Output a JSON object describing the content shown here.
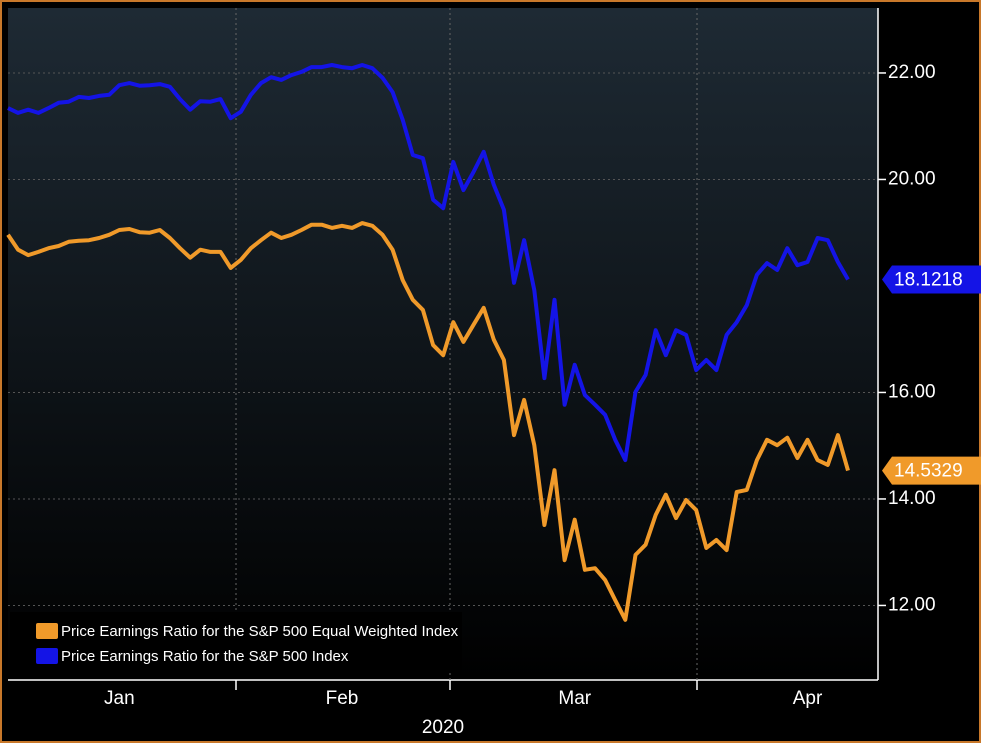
{
  "chart_data": {
    "type": "line",
    "xlabel": "2020",
    "categories": [
      null,
      null,
      null,
      null,
      null,
      null,
      null,
      null,
      null,
      null,
      null,
      "Jan",
      null,
      null,
      null,
      null,
      null,
      null,
      null,
      null,
      null,
      null,
      null,
      null,
      null,
      null,
      null,
      null,
      null,
      null,
      null,
      null,
      null,
      "Feb",
      null,
      null,
      null,
      null,
      null,
      null,
      null,
      null,
      null,
      null,
      null,
      null,
      null,
      null,
      null,
      null,
      null,
      null,
      null,
      null,
      null,
      null,
      "Mar",
      null,
      null,
      null,
      null,
      null,
      null,
      null,
      null,
      null,
      null,
      null,
      null,
      null,
      null,
      null,
      null,
      null,
      null,
      null,
      null,
      null,
      null,
      "Apr",
      null,
      null,
      null,
      null
    ],
    "series": [
      {
        "name": "Price Earnings Ratio for the S&P 500 Equal Weighted Index",
        "color": "#f09a2a",
        "values": [
          18.96,
          18.68,
          18.58,
          18.64,
          18.71,
          18.75,
          18.83,
          18.85,
          18.86,
          18.9,
          18.96,
          19.05,
          19.07,
          19.01,
          19.0,
          19.05,
          18.9,
          18.71,
          18.53,
          18.68,
          18.64,
          18.64,
          18.34,
          18.49,
          18.71,
          18.86,
          19.0,
          18.9,
          18.96,
          19.05,
          19.15,
          19.15,
          19.09,
          19.13,
          19.09,
          19.18,
          19.13,
          18.96,
          18.68,
          18.11,
          17.74,
          17.55,
          16.89,
          16.7,
          17.32,
          16.95,
          17.27,
          17.59,
          16.99,
          16.61,
          15.2,
          15.86,
          15.01,
          13.51,
          14.54,
          12.85,
          13.61,
          12.67,
          12.7,
          12.48,
          12.1,
          11.73,
          12.95,
          13.14,
          13.7,
          14.08,
          13.64,
          13.98,
          13.79,
          13.08,
          13.23,
          13.04,
          14.13,
          14.17,
          14.73,
          15.11,
          15.01,
          15.15,
          14.77,
          15.11,
          14.73,
          14.64,
          15.2,
          14.5329
        ]
      },
      {
        "name": "Price Earnings Ratio for the S&P 500 Index",
        "color": "#1414e6",
        "values": [
          21.34,
          21.25,
          21.31,
          21.25,
          21.34,
          21.44,
          21.46,
          21.55,
          21.53,
          21.57,
          21.59,
          21.77,
          21.81,
          21.76,
          21.77,
          21.79,
          21.74,
          21.51,
          21.31,
          21.47,
          21.46,
          21.51,
          21.15,
          21.27,
          21.59,
          21.81,
          21.92,
          21.87,
          21.96,
          22.02,
          22.11,
          22.11,
          22.15,
          22.11,
          22.09,
          22.15,
          22.09,
          21.91,
          21.64,
          21.12,
          20.46,
          20.4,
          19.62,
          19.46,
          20.33,
          19.8,
          20.14,
          20.52,
          19.9,
          19.43,
          18.06,
          18.86,
          17.92,
          16.27,
          17.74,
          15.77,
          16.52,
          15.95,
          15.77,
          15.58,
          15.11,
          14.73,
          16.01,
          16.33,
          17.17,
          16.7,
          17.17,
          17.08,
          16.42,
          16.61,
          16.42,
          17.08,
          17.32,
          17.64,
          18.21,
          18.43,
          18.3,
          18.71,
          18.39,
          18.45,
          18.9,
          18.86,
          18.45,
          18.1218
        ]
      }
    ],
    "ylim": [
      10.6,
      23.22
    ],
    "yticks": [
      {
        "value": 12,
        "label": "12.00"
      },
      {
        "value": 14,
        "label": "14.00"
      },
      {
        "value": 16,
        "label": "16.00"
      },
      {
        "value": 20,
        "label": "20.00"
      },
      {
        "value": 22,
        "label": "22.00"
      }
    ],
    "grid": true,
    "legend": "lower left"
  }
}
